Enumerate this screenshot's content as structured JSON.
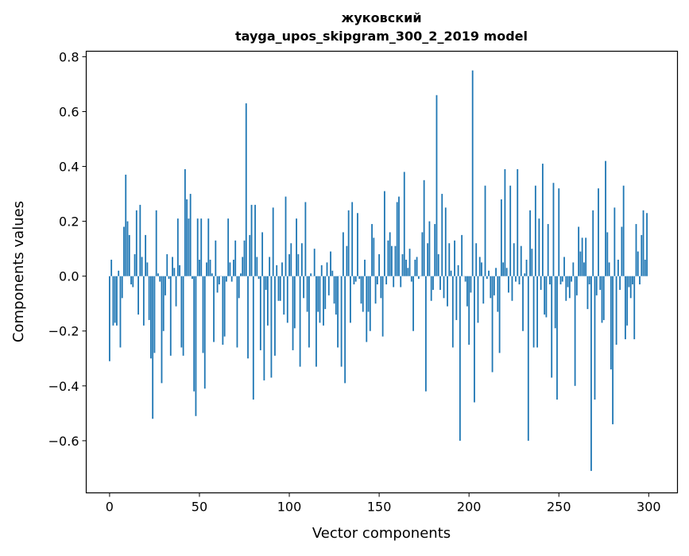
{
  "chart_data": {
    "type": "bar",
    "title": "жуковский",
    "subtitle": "tayga_upos_skipgram_300_2_2019 model",
    "xlabel": "Vector components",
    "ylabel": "Components values",
    "xlim": [
      -13,
      316
    ],
    "ylim": [
      -0.79,
      0.82
    ],
    "xticks": [
      0,
      50,
      100,
      150,
      200,
      250,
      300
    ],
    "yticks": [
      -0.6,
      -0.4,
      -0.2,
      0.0,
      0.2,
      0.4,
      0.6,
      0.8
    ],
    "grid": false,
    "color": "#1f77b4",
    "values": [
      -0.31,
      0.06,
      -0.18,
      -0.17,
      -0.18,
      0.02,
      -0.26,
      -0.08,
      0.18,
      0.37,
      0.2,
      0.15,
      -0.03,
      -0.04,
      0.08,
      0.24,
      -0.14,
      0.26,
      0.07,
      -0.18,
      0.15,
      0.05,
      -0.16,
      -0.3,
      -0.52,
      -0.28,
      0.24,
      0.01,
      -0.02,
      -0.39,
      -0.2,
      -0.07,
      0.08,
      -0.01,
      -0.29,
      0.07,
      0.03,
      -0.11,
      0.21,
      0.04,
      -0.26,
      -0.29,
      0.39,
      0.28,
      0.21,
      0.3,
      -0.01,
      -0.42,
      -0.51,
      0.21,
      0.06,
      0.21,
      -0.28,
      -0.41,
      0.05,
      0.21,
      0.06,
      0.01,
      -0.24,
      0.13,
      -0.06,
      -0.03,
      0.0,
      -0.25,
      -0.22,
      -0.02,
      0.21,
      0.05,
      -0.02,
      0.06,
      0.13,
      -0.26,
      -0.08,
      0.01,
      0.07,
      0.13,
      0.63,
      -0.3,
      0.15,
      0.26,
      -0.45,
      0.26,
      0.07,
      -0.01,
      -0.27,
      0.16,
      -0.38,
      -0.05,
      -0.18,
      0.07,
      -0.37,
      0.25,
      -0.29,
      0.04,
      -0.09,
      -0.09,
      0.05,
      -0.14,
      0.29,
      -0.17,
      0.08,
      0.12,
      -0.27,
      -0.19,
      0.21,
      0.08,
      -0.33,
      0.12,
      -0.08,
      0.27,
      -0.13,
      -0.26,
      0.01,
      0.0,
      0.1,
      -0.33,
      -0.13,
      -0.17,
      0.04,
      -0.18,
      -0.12,
      0.05,
      -0.07,
      0.09,
      0.02,
      -0.1,
      -0.14,
      -0.26,
      0.0,
      -0.33,
      0.16,
      -0.39,
      0.11,
      0.24,
      -0.17,
      0.27,
      -0.03,
      -0.02,
      0.23,
      -0.01,
      -0.1,
      -0.13,
      0.06,
      -0.24,
      -0.13,
      -0.2,
      0.19,
      0.14,
      -0.1,
      -0.03,
      0.08,
      -0.08,
      -0.22,
      0.31,
      -0.03,
      0.13,
      0.16,
      0.11,
      -0.04,
      0.11,
      0.27,
      0.29,
      -0.04,
      0.08,
      0.38,
      0.06,
      0.03,
      0.1,
      -0.02,
      -0.2,
      0.06,
      0.07,
      -0.01,
      0.0,
      0.16,
      0.35,
      -0.42,
      0.12,
      0.2,
      -0.09,
      -0.05,
      0.19,
      0.66,
      0.08,
      -0.05,
      0.3,
      -0.08,
      0.25,
      -0.11,
      0.12,
      0.02,
      -0.26,
      0.13,
      -0.16,
      0.04,
      -0.6,
      0.15,
      0.0,
      -0.02,
      -0.11,
      -0.25,
      -0.06,
      0.75,
      -0.46,
      0.12,
      -0.17,
      0.07,
      0.05,
      -0.1,
      0.33,
      -0.01,
      0.02,
      -0.08,
      -0.35,
      -0.07,
      0.03,
      -0.13,
      -0.28,
      0.28,
      0.05,
      0.39,
      0.03,
      -0.06,
      0.33,
      -0.09,
      0.12,
      -0.02,
      0.39,
      -0.03,
      0.11,
      -0.2,
      0.01,
      0.06,
      -0.6,
      0.24,
      0.1,
      -0.26,
      0.33,
      -0.26,
      0.21,
      -0.05,
      0.41,
      -0.14,
      -0.15,
      0.19,
      -0.03,
      -0.37,
      0.34,
      -0.19,
      -0.45,
      0.32,
      -0.03,
      -0.02,
      0.07,
      -0.09,
      -0.04,
      -0.08,
      -0.02,
      0.05,
      -0.4,
      -0.07,
      0.18,
      0.09,
      0.14,
      0.05,
      0.14,
      -0.12,
      -0.03,
      -0.71,
      0.24,
      -0.45,
      -0.07,
      0.32,
      -0.05,
      -0.17,
      -0.16,
      0.42,
      0.16,
      0.05,
      -0.34,
      -0.54,
      0.25,
      -0.25,
      0.06,
      -0.05,
      0.18,
      0.33,
      -0.23,
      -0.18,
      -0.04,
      -0.08,
      -0.03,
      -0.23,
      0.19,
      0.09,
      -0.03,
      0.15,
      0.24,
      0.06,
      0.23
    ]
  }
}
